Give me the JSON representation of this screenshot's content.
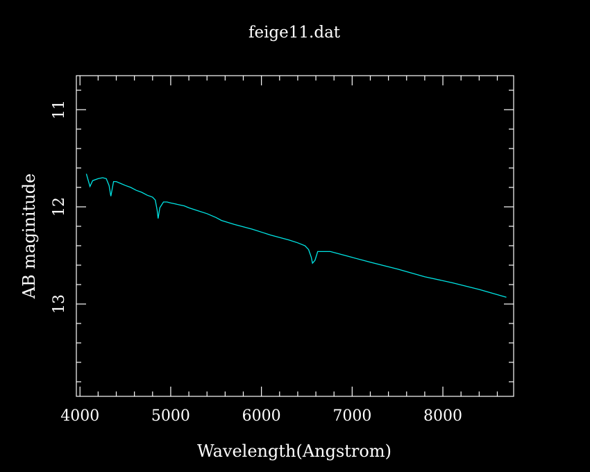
{
  "chart_data": {
    "type": "line",
    "title": "feige11.dat",
    "xlabel": "Wavelength(Angstrom)",
    "ylabel": "AB maginitude",
    "xlim": [
      3960,
      8780
    ],
    "ylim": [
      10.65,
      13.95
    ],
    "y_inverted": true,
    "x_major_ticks": [
      4000,
      5000,
      6000,
      7000,
      8000
    ],
    "x_tick_labels": [
      "4000",
      "5000",
      "6000",
      "7000",
      "8000"
    ],
    "x_minor_step": 200,
    "y_major_ticks": [
      11,
      12,
      13
    ],
    "y_tick_labels": [
      "11",
      "12",
      "13"
    ],
    "y_minor_step": 0.2,
    "grid": false,
    "colors": {
      "background": "#000000",
      "axes": "#ffffff",
      "line": "#00e5e5"
    },
    "series": [
      {
        "x": [
          4070,
          4110,
          4140,
          4200,
          4250,
          4290,
          4320,
          4340,
          4370,
          4400,
          4450,
          4500,
          4560,
          4620,
          4680,
          4740,
          4800,
          4830,
          4850,
          4861,
          4880,
          4920,
          4960,
          5000,
          5050,
          5100,
          5150,
          5200,
          5300,
          5400,
          5500,
          5560,
          5700,
          5900,
          6100,
          6300,
          6400,
          6480,
          6520,
          6550,
          6563,
          6590,
          6620,
          6700,
          6760,
          7000,
          7200,
          7500,
          7800,
          8100,
          8400,
          8700
        ],
        "y": [
          11.66,
          11.79,
          11.73,
          11.71,
          11.7,
          11.71,
          11.78,
          11.89,
          11.74,
          11.74,
          11.76,
          11.78,
          11.8,
          11.83,
          11.85,
          11.88,
          11.9,
          11.93,
          12.03,
          12.12,
          12.01,
          11.95,
          11.95,
          11.96,
          11.97,
          11.98,
          11.99,
          12.01,
          12.04,
          12.07,
          12.11,
          12.14,
          12.18,
          12.23,
          12.29,
          12.34,
          12.37,
          12.4,
          12.44,
          12.52,
          12.58,
          12.55,
          12.46,
          12.46,
          12.46,
          12.52,
          12.57,
          12.64,
          12.72,
          12.78,
          12.85,
          12.93
        ]
      }
    ]
  }
}
